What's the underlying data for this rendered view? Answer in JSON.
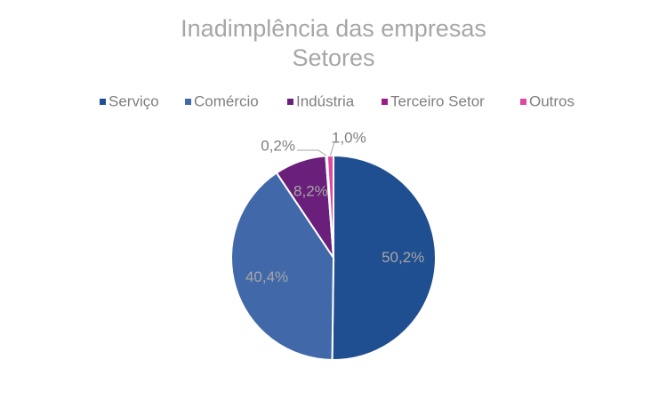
{
  "chart_data": {
    "type": "pie",
    "title": "Inadimplência das empresas",
    "subtitle": "Setores",
    "categories": [
      "Serviço",
      "Comércio",
      "Indústria",
      "Terceiro Setor",
      "Outros"
    ],
    "values": [
      50.2,
      40.4,
      8.2,
      0.2,
      1.0
    ],
    "value_labels": [
      "50,2%",
      "40,4%",
      "8,2%",
      "0,2%",
      "1,0%"
    ],
    "colors": [
      "#1f4e91",
      "#4169a9",
      "#6a1f7b",
      "#9c1c84",
      "#e0489f"
    ],
    "legend": "top"
  }
}
